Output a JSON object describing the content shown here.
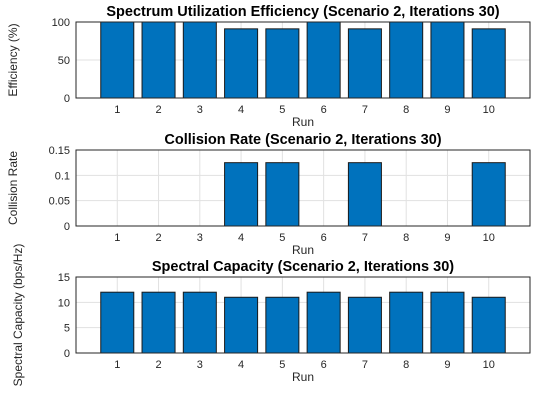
{
  "chart_data": [
    {
      "type": "bar",
      "title": "Spectrum Utilization Efficiency (Scenario 2, Iterations 30)",
      "xlabel": "Run",
      "ylabel": "Efficiency (%)",
      "categories": [
        "1",
        "2",
        "3",
        "4",
        "5",
        "6",
        "7",
        "8",
        "9",
        "10"
      ],
      "values": [
        100,
        100,
        100,
        91,
        91,
        100,
        91,
        100,
        100,
        91
      ],
      "ylim": [
        0,
        100
      ],
      "yticks": [
        "0",
        "50",
        "100"
      ],
      "grid": true,
      "bar_color": "#0072BD"
    },
    {
      "type": "bar",
      "title": "Collision Rate (Scenario 2, Iterations 30)",
      "xlabel": "Run",
      "ylabel": "Collision Rate",
      "categories": [
        "1",
        "2",
        "3",
        "4",
        "5",
        "6",
        "7",
        "8",
        "9",
        "10"
      ],
      "values": [
        0,
        0,
        0,
        0.125,
        0.125,
        0,
        0.125,
        0,
        0,
        0.125
      ],
      "ylim": [
        0,
        0.15
      ],
      "yticks": [
        "0",
        "0.05",
        "0.1",
        "0.15"
      ],
      "grid": true,
      "bar_color": "#0072BD"
    },
    {
      "type": "bar",
      "title": "Spectral Capacity (Scenario 2, Iterations 30)",
      "xlabel": "Run",
      "ylabel": "Spectral Capacity (bps/Hz)",
      "categories": [
        "1",
        "2",
        "3",
        "4",
        "5",
        "6",
        "7",
        "8",
        "9",
        "10"
      ],
      "values": [
        12,
        12,
        12,
        11,
        11,
        12,
        11,
        12,
        12,
        11
      ],
      "ylim": [
        0,
        15
      ],
      "yticks": [
        "0",
        "5",
        "10",
        "15"
      ],
      "grid": true,
      "bar_color": "#0072BD"
    }
  ]
}
